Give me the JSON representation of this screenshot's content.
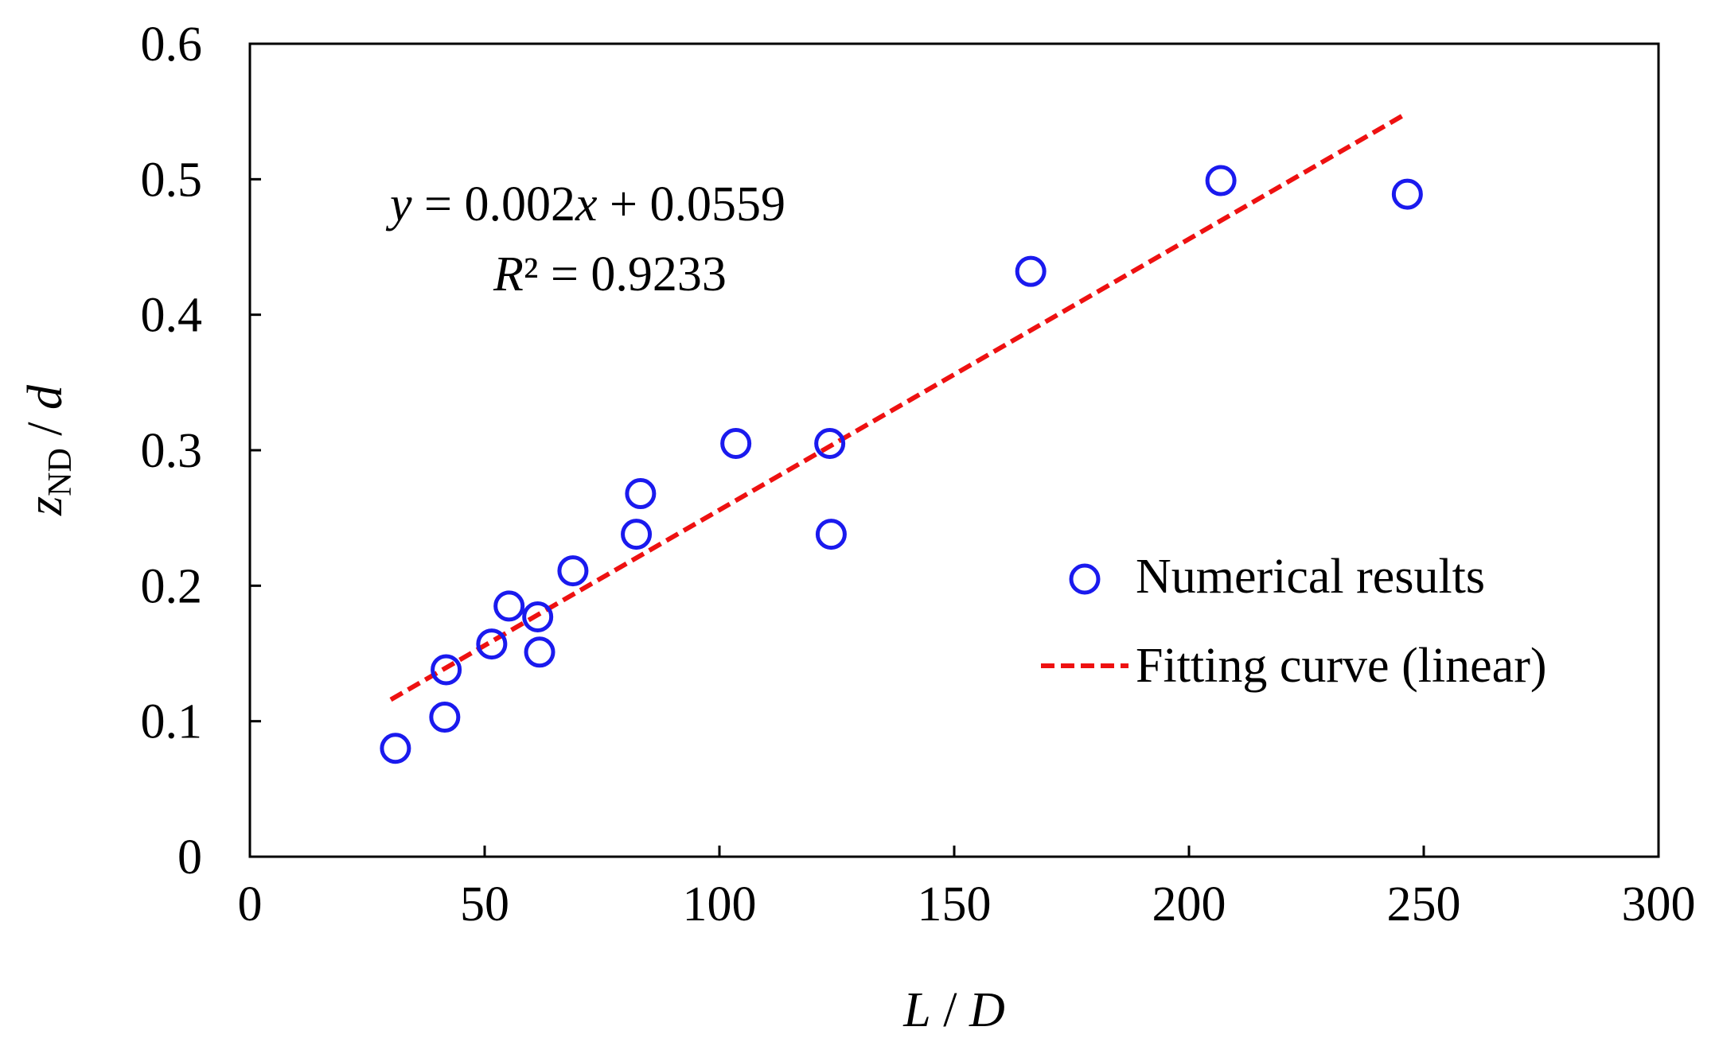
{
  "chart_data": {
    "type": "scatter",
    "title": "",
    "xlabel_main": "L",
    "xlabel_sep": " / ",
    "xlabel_den": "D",
    "ylabel_main": "z",
    "ylabel_sub": "ND",
    "ylabel_sep": " / ",
    "ylabel_den": "d",
    "xlim": [
      0,
      300
    ],
    "ylim": [
      0,
      0.6
    ],
    "xticks": [
      0,
      50,
      100,
      150,
      200,
      250,
      300
    ],
    "xtick_labels": [
      "0",
      "50",
      "100",
      "150",
      "200",
      "250",
      "300"
    ],
    "yticks": [
      0,
      0.1,
      0.2,
      0.3,
      0.4,
      0.5,
      0.6
    ],
    "ytick_labels": [
      "0",
      "0.1",
      "0.2",
      "0.3",
      "0.4",
      "0.5",
      "0.6"
    ],
    "grid": false,
    "series": [
      {
        "name": "Numerical results",
        "kind": "scatter",
        "color": "#1a1aee",
        "x": [
          31,
          41.5,
          41.8,
          51.5,
          55.2,
          61.3,
          61.7,
          68.8,
          82.3,
          83.2,
          103.5,
          123.5,
          123.8,
          166.3,
          206.8,
          246.5
        ],
        "y": [
          0.08,
          0.103,
          0.138,
          0.157,
          0.185,
          0.177,
          0.151,
          0.211,
          0.238,
          0.268,
          0.305,
          0.305,
          0.238,
          0.432,
          0.499,
          0.489
        ]
      },
      {
        "name": "Fitting curve (linear)",
        "kind": "line",
        "style": "dashed",
        "color": "#ee1111",
        "x": [
          30,
          246.5
        ],
        "y": [
          0.1159,
          0.5489
        ]
      }
    ],
    "legend_position": "right",
    "annotation": {
      "eq_y": "y",
      "eq_mid": " = 0.002",
      "eq_x": "x",
      "eq_rest": " + 0.0559",
      "r2_r": "R",
      "r2_rest": "² = 0.9233"
    }
  }
}
